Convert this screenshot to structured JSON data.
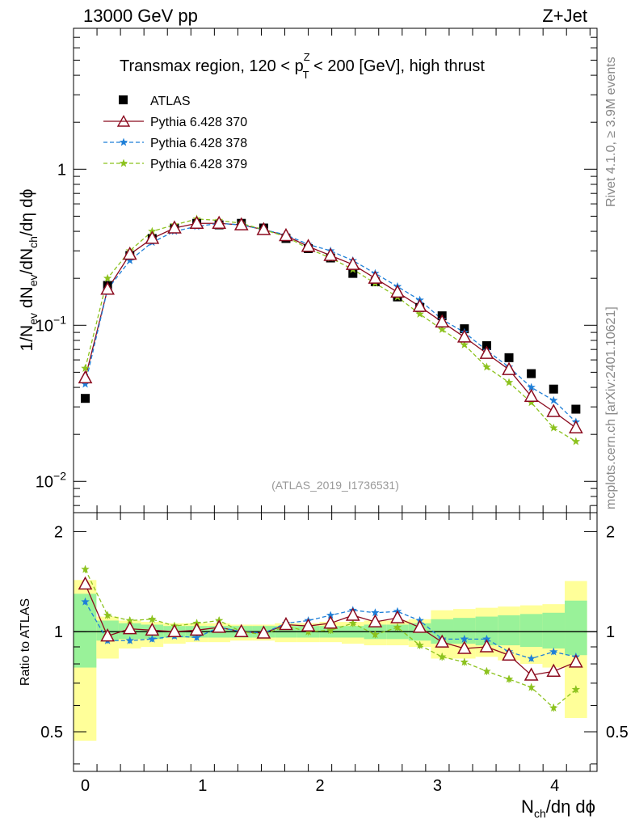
{
  "header": {
    "left": "13000 GeV pp",
    "right": "Z+Jet",
    "side_top": "Rivet 4.1.0, ≥ 3.9M events",
    "side_bottom": "mcplots.cern.ch [arXiv:2401.10621]"
  },
  "colors": {
    "atlas": "#000000",
    "p370": "#8b0a1e",
    "p378": "#1e7fd8",
    "p379": "#8cc21e",
    "band_inner": "#99f299",
    "band_outer": "#ffff99"
  },
  "chart_data": {
    "type": "scatter",
    "title_parts": {
      "pre": "Transmax region, 120 < p",
      "sup": "Z",
      "sub": "T",
      "post": " < 200 [GeV], high thrust"
    },
    "ylabel_main": "1/N_ev dN_ev/dN_ch/dη dϕ",
    "ylabel_ratio": "Ratio to ATLAS",
    "xlabel": "N_ch/dη dϕ",
    "analysis_id": "(ATLAS_2019_I1736531)",
    "xlim": [
      -0.1,
      4.36
    ],
    "ylim_main": [
      0.0063,
      8.0
    ],
    "ylim_ratio": [
      0.38,
      2.28
    ],
    "x_ticks": [
      0,
      1,
      2,
      3,
      4
    ],
    "x_tick_labels": [
      "0",
      "1",
      "2",
      "3",
      "4"
    ],
    "y_ticks_main": [
      0.01,
      0.1,
      1
    ],
    "y_tick_labels_main": [
      {
        "base": "10",
        "exp": "−2"
      },
      {
        "base": "10",
        "exp": "−1"
      },
      {
        "base": "1",
        "exp": ""
      }
    ],
    "y_ticks_ratio": [
      0.5,
      1,
      2
    ],
    "y_tick_labels_ratio": [
      "0.5",
      "1",
      "2"
    ],
    "x": [
      0,
      0.19,
      0.38,
      0.57,
      0.76,
      0.95,
      1.14,
      1.33,
      1.52,
      1.71,
      1.9,
      2.09,
      2.28,
      2.47,
      2.66,
      2.85,
      3.04,
      3.23,
      3.42,
      3.61,
      3.8,
      3.99,
      4.18
    ],
    "series": [
      {
        "name": "ATLAS",
        "marker": "square",
        "color": "#000000",
        "values": [
          0.034,
          0.18,
          0.28,
          0.36,
          0.42,
          0.45,
          0.44,
          0.45,
          0.42,
          0.36,
          0.31,
          0.27,
          0.215,
          0.19,
          0.152,
          0.13,
          0.115,
          0.095,
          0.074,
          0.062,
          0.049,
          0.039,
          0.029
        ]
      },
      {
        "name": "Pythia 6.428 370",
        "marker": "triangle",
        "color": "#8b0a1e",
        "dash": "",
        "values": [
          0.046,
          0.17,
          0.285,
          0.36,
          0.42,
          0.45,
          0.45,
          0.44,
          0.41,
          0.375,
          0.32,
          0.28,
          0.245,
          0.2,
          0.163,
          0.132,
          0.105,
          0.084,
          0.066,
          0.052,
          0.035,
          0.028,
          0.022
        ]
      },
      {
        "name": "Pythia 6.428 378",
        "marker": "star",
        "color": "#1e7fd8",
        "dash": "5,3",
        "values": [
          0.042,
          0.17,
          0.26,
          0.34,
          0.4,
          0.43,
          0.45,
          0.44,
          0.41,
          0.38,
          0.33,
          0.3,
          0.26,
          0.215,
          0.177,
          0.145,
          0.109,
          0.09,
          0.069,
          0.054,
          0.04,
          0.033,
          0.024
        ]
      },
      {
        "name": "Pythia 6.428 379",
        "marker": "star",
        "color": "#8cc21e",
        "dash": "5,3",
        "values": [
          0.053,
          0.2,
          0.3,
          0.4,
          0.44,
          0.48,
          0.47,
          0.45,
          0.41,
          0.37,
          0.31,
          0.27,
          0.228,
          0.186,
          0.152,
          0.118,
          0.094,
          0.075,
          0.054,
          0.043,
          0.032,
          0.022,
          0.018
        ]
      }
    ],
    "ratio_series": [
      {
        "name": "Pythia 6.428 370",
        "values": [
          1.39,
          0.97,
          1.02,
          1.01,
          1.0,
          1.01,
          1.03,
          1.0,
          0.99,
          1.05,
          1.04,
          1.06,
          1.12,
          1.07,
          1.1,
          1.03,
          0.93,
          0.89,
          0.9,
          0.85,
          0.74,
          0.76,
          0.81
        ],
        "err": 0.02
      },
      {
        "name": "Pythia 6.428 378",
        "values": [
          1.23,
          0.94,
          0.94,
          0.95,
          0.97,
          0.96,
          1.03,
          1.0,
          0.99,
          1.06,
          1.08,
          1.12,
          1.16,
          1.14,
          1.15,
          1.08,
          0.95,
          0.95,
          0.95,
          0.87,
          0.83,
          0.87,
          0.84
        ],
        "err": 0.02
      },
      {
        "name": "Pythia 6.428 379",
        "values": [
          1.54,
          1.12,
          1.08,
          1.09,
          1.04,
          1.06,
          1.08,
          1.0,
          0.98,
          1.04,
          1.0,
          1.01,
          1.06,
          0.98,
          1.03,
          0.91,
          0.84,
          0.81,
          0.76,
          0.72,
          0.68,
          0.59,
          0.67
        ],
        "err": 0.025
      }
    ],
    "bands": [
      {
        "x0": -0.1,
        "x1": 0.095,
        "inner": [
          0.78,
          1.3
        ],
        "outer": [
          0.47,
          1.43
        ]
      },
      {
        "x0": 0.095,
        "x1": 0.285,
        "inner": [
          0.94,
          1.08
        ],
        "outer": [
          0.83,
          1.11
        ]
      },
      {
        "x0": 0.285,
        "x1": 0.475,
        "inner": [
          0.95,
          1.06
        ],
        "outer": [
          0.89,
          1.08
        ]
      },
      {
        "x0": 0.475,
        "x1": 0.665,
        "inner": [
          0.95,
          1.05
        ],
        "outer": [
          0.9,
          1.07
        ]
      },
      {
        "x0": 0.665,
        "x1": 0.855,
        "inner": [
          0.96,
          1.04
        ],
        "outer": [
          0.92,
          1.06
        ]
      },
      {
        "x0": 0.855,
        "x1": 1.045,
        "inner": [
          0.96,
          1.04
        ],
        "outer": [
          0.93,
          1.06
        ]
      },
      {
        "x0": 1.045,
        "x1": 1.235,
        "inner": [
          0.96,
          1.04
        ],
        "outer": [
          0.93,
          1.06
        ]
      },
      {
        "x0": 1.235,
        "x1": 1.425,
        "inner": [
          0.96,
          1.04
        ],
        "outer": [
          0.94,
          1.05
        ]
      },
      {
        "x0": 1.425,
        "x1": 1.615,
        "inner": [
          0.96,
          1.04
        ],
        "outer": [
          0.94,
          1.05
        ]
      },
      {
        "x0": 1.615,
        "x1": 1.805,
        "inner": [
          0.96,
          1.04
        ],
        "outer": [
          0.93,
          1.06
        ]
      },
      {
        "x0": 1.805,
        "x1": 1.995,
        "inner": [
          0.96,
          1.04
        ],
        "outer": [
          0.93,
          1.06
        ]
      },
      {
        "x0": 1.995,
        "x1": 2.185,
        "inner": [
          0.96,
          1.04
        ],
        "outer": [
          0.93,
          1.07
        ]
      },
      {
        "x0": 2.185,
        "x1": 2.375,
        "inner": [
          0.96,
          1.04
        ],
        "outer": [
          0.92,
          1.07
        ]
      },
      {
        "x0": 2.375,
        "x1": 2.565,
        "inner": [
          0.95,
          1.05
        ],
        "outer": [
          0.91,
          1.08
        ]
      },
      {
        "x0": 2.565,
        "x1": 2.755,
        "inner": [
          0.95,
          1.05
        ],
        "outer": [
          0.91,
          1.08
        ]
      },
      {
        "x0": 2.755,
        "x1": 2.945,
        "inner": [
          0.94,
          1.06
        ],
        "outer": [
          0.9,
          1.09
        ]
      },
      {
        "x0": 2.945,
        "x1": 3.135,
        "inner": [
          0.92,
          1.09
        ],
        "outer": [
          0.83,
          1.16
        ]
      },
      {
        "x0": 3.135,
        "x1": 3.325,
        "inner": [
          0.92,
          1.1
        ],
        "outer": [
          0.83,
          1.17
        ]
      },
      {
        "x0": 3.325,
        "x1": 3.515,
        "inner": [
          0.91,
          1.11
        ],
        "outer": [
          0.84,
          1.18
        ]
      },
      {
        "x0": 3.515,
        "x1": 3.705,
        "inner": [
          0.91,
          1.12
        ],
        "outer": [
          0.82,
          1.19
        ]
      },
      {
        "x0": 3.705,
        "x1": 3.895,
        "inner": [
          0.9,
          1.13
        ],
        "outer": [
          0.8,
          1.2
        ]
      },
      {
        "x0": 3.895,
        "x1": 4.085,
        "inner": [
          0.89,
          1.14
        ],
        "outer": [
          0.78,
          1.21
        ]
      },
      {
        "x0": 4.085,
        "x1": 4.275,
        "inner": [
          0.85,
          1.24
        ],
        "outer": [
          0.55,
          1.42
        ]
      }
    ]
  }
}
